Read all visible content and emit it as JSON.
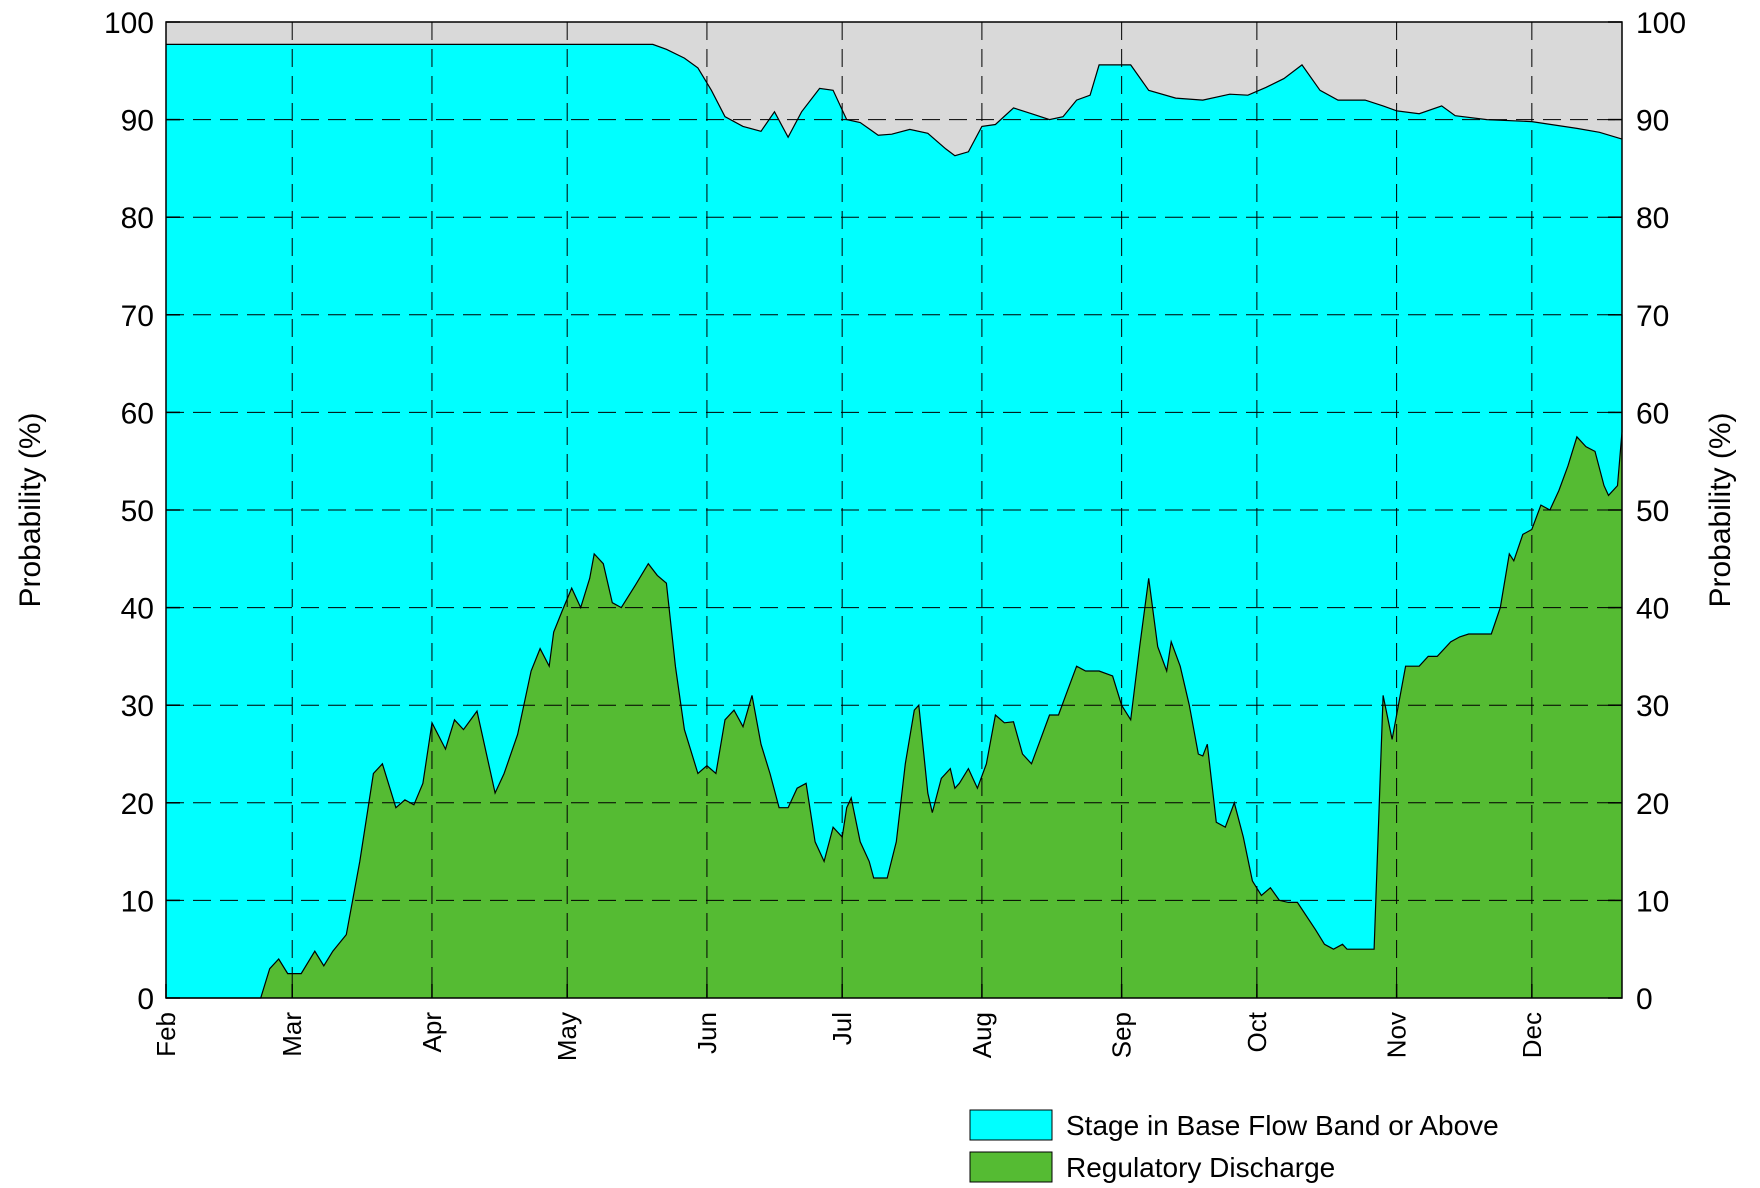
{
  "chart_data": {
    "type": "area",
    "ylabel_left": "Probability (%)",
    "ylabel_right": "Probability (%)",
    "ylim": [
      0,
      100
    ],
    "y_ticks": [
      0,
      10,
      20,
      30,
      40,
      50,
      60,
      70,
      80,
      90,
      100
    ],
    "x_unit": "day_of_year",
    "xlim": [
      32,
      355
    ],
    "x_ticks": [
      {
        "x": 32,
        "label": "Feb"
      },
      {
        "x": 60,
        "label": "Mar"
      },
      {
        "x": 91,
        "label": "Apr"
      },
      {
        "x": 121,
        "label": "May"
      },
      {
        "x": 152,
        "label": "Jun"
      },
      {
        "x": 182,
        "label": "Jul"
      },
      {
        "x": 213,
        "label": "Aug"
      },
      {
        "x": 244,
        "label": "Sep"
      },
      {
        "x": 274,
        "label": "Oct"
      },
      {
        "x": 305,
        "label": "Nov"
      },
      {
        "x": 335,
        "label": "Dec"
      }
    ],
    "grid": true,
    "legend_position": "bottom-right",
    "background_color": "#d9d9d9",
    "series": [
      {
        "name": "Stage in Base Flow Band or Above",
        "color": "#00ffff",
        "points": [
          [
            32,
            97.7
          ],
          [
            60,
            97.7
          ],
          [
            91,
            97.7
          ],
          [
            121,
            97.7
          ],
          [
            140,
            97.7
          ],
          [
            143,
            97.2
          ],
          [
            147,
            96.3
          ],
          [
            150,
            95.3
          ],
          [
            153,
            93.0
          ],
          [
            156,
            90.3
          ],
          [
            160,
            89.3
          ],
          [
            164,
            88.8
          ],
          [
            167,
            90.8
          ],
          [
            170,
            88.2
          ],
          [
            173,
            90.8
          ],
          [
            177,
            93.2
          ],
          [
            180,
            93.0
          ],
          [
            183,
            90.0
          ],
          [
            186,
            89.7
          ],
          [
            190,
            88.4
          ],
          [
            193,
            88.5
          ],
          [
            197,
            89.0
          ],
          [
            201,
            88.6
          ],
          [
            205,
            87.0
          ],
          [
            207,
            86.3
          ],
          [
            210,
            86.7
          ],
          [
            213,
            89.3
          ],
          [
            216,
            89.5
          ],
          [
            220,
            91.2
          ],
          [
            224,
            90.6
          ],
          [
            228,
            90.0
          ],
          [
            231,
            90.3
          ],
          [
            234,
            92.0
          ],
          [
            237,
            92.5
          ],
          [
            239,
            95.6
          ],
          [
            246,
            95.6
          ],
          [
            250,
            93.0
          ],
          [
            256,
            92.2
          ],
          [
            262,
            92.0
          ],
          [
            268,
            92.6
          ],
          [
            272,
            92.5
          ],
          [
            276,
            93.3
          ],
          [
            280,
            94.2
          ],
          [
            284,
            95.6
          ],
          [
            288,
            93.0
          ],
          [
            292,
            92.0
          ],
          [
            298,
            92.0
          ],
          [
            302,
            91.4
          ],
          [
            305,
            90.9
          ],
          [
            310,
            90.6
          ],
          [
            315,
            91.4
          ],
          [
            318,
            90.4
          ],
          [
            325,
            90.0
          ],
          [
            335,
            89.8
          ],
          [
            345,
            89.1
          ],
          [
            350,
            88.7
          ],
          [
            355,
            88.0
          ]
        ]
      },
      {
        "name": "Regulatory Discharge",
        "color": "#55bb33",
        "points": [
          [
            32,
            0
          ],
          [
            53,
            0
          ],
          [
            55,
            3.0
          ],
          [
            57,
            4.0
          ],
          [
            59,
            2.5
          ],
          [
            62,
            2.5
          ],
          [
            65,
            4.8
          ],
          [
            67,
            3.3
          ],
          [
            69,
            4.8
          ],
          [
            72,
            6.5
          ],
          [
            75,
            14.0
          ],
          [
            78,
            23.0
          ],
          [
            80,
            24.0
          ],
          [
            83,
            19.5
          ],
          [
            85,
            20.3
          ],
          [
            87,
            19.8
          ],
          [
            89,
            22.0
          ],
          [
            91,
            28.2
          ],
          [
            94,
            25.5
          ],
          [
            96,
            28.5
          ],
          [
            98,
            27.5
          ],
          [
            101,
            29.4
          ],
          [
            105,
            21.0
          ],
          [
            107,
            23.0
          ],
          [
            110,
            27.0
          ],
          [
            113,
            33.5
          ],
          [
            115,
            35.8
          ],
          [
            117,
            34.0
          ],
          [
            118,
            37.5
          ],
          [
            120,
            39.8
          ],
          [
            122,
            42.0
          ],
          [
            124,
            40.0
          ],
          [
            126,
            43.0
          ],
          [
            127,
            45.5
          ],
          [
            129,
            44.5
          ],
          [
            131,
            40.5
          ],
          [
            133,
            40.0
          ],
          [
            136,
            42.2
          ],
          [
            139,
            44.5
          ],
          [
            141,
            43.3
          ],
          [
            143,
            42.5
          ],
          [
            145,
            34.0
          ],
          [
            147,
            27.5
          ],
          [
            150,
            23.0
          ],
          [
            152,
            23.8
          ],
          [
            154,
            23.0
          ],
          [
            156,
            28.5
          ],
          [
            158,
            29.5
          ],
          [
            160,
            27.8
          ],
          [
            162,
            31.0
          ],
          [
            164,
            26.0
          ],
          [
            166,
            23.0
          ],
          [
            168,
            19.5
          ],
          [
            170,
            19.5
          ],
          [
            172,
            21.5
          ],
          [
            174,
            22.0
          ],
          [
            176,
            16.0
          ],
          [
            178,
            14.0
          ],
          [
            180,
            17.5
          ],
          [
            182,
            16.5
          ],
          [
            183,
            19.5
          ],
          [
            184,
            20.5
          ],
          [
            186,
            16.0
          ],
          [
            188,
            14.0
          ],
          [
            189,
            12.3
          ],
          [
            192,
            12.3
          ],
          [
            194,
            16.0
          ],
          [
            196,
            24.0
          ],
          [
            198,
            29.5
          ],
          [
            199,
            30.0
          ],
          [
            201,
            21.0
          ],
          [
            202,
            19.0
          ],
          [
            204,
            22.5
          ],
          [
            206,
            23.5
          ],
          [
            207,
            21.5
          ],
          [
            208,
            22.0
          ],
          [
            210,
            23.5
          ],
          [
            212,
            21.5
          ],
          [
            214,
            24.0
          ],
          [
            216,
            29.0
          ],
          [
            218,
            28.2
          ],
          [
            220,
            28.3
          ],
          [
            222,
            25.0
          ],
          [
            224,
            24.0
          ],
          [
            226,
            26.5
          ],
          [
            228,
            29.0
          ],
          [
            230,
            29.0
          ],
          [
            232,
            31.5
          ],
          [
            234,
            34.0
          ],
          [
            236,
            33.5
          ],
          [
            239,
            33.5
          ],
          [
            242,
            33.0
          ],
          [
            244,
            30.0
          ],
          [
            246,
            28.5
          ],
          [
            248,
            36.0
          ],
          [
            250,
            43.0
          ],
          [
            252,
            36.0
          ],
          [
            254,
            33.5
          ],
          [
            255,
            36.5
          ],
          [
            257,
            34.0
          ],
          [
            259,
            30.0
          ],
          [
            261,
            25.0
          ],
          [
            262,
            24.8
          ],
          [
            263,
            26.0
          ],
          [
            265,
            18.0
          ],
          [
            267,
            17.5
          ],
          [
            269,
            20.0
          ],
          [
            271,
            16.5
          ],
          [
            273,
            12.0
          ],
          [
            275,
            10.5
          ],
          [
            277,
            11.3
          ],
          [
            279,
            10.0
          ],
          [
            281,
            9.8
          ],
          [
            283,
            9.8
          ],
          [
            287,
            7.0
          ],
          [
            289,
            5.5
          ],
          [
            291,
            5.0
          ],
          [
            293,
            5.5
          ],
          [
            294,
            5.0
          ],
          [
            296,
            5.0
          ],
          [
            300,
            5.0
          ],
          [
            302,
            31.0
          ],
          [
            304,
            26.5
          ],
          [
            307,
            34.0
          ],
          [
            310,
            34.0
          ],
          [
            312,
            35.0
          ],
          [
            314,
            35.0
          ],
          [
            317,
            36.5
          ],
          [
            319,
            37.0
          ],
          [
            321,
            37.3
          ],
          [
            326,
            37.3
          ],
          [
            328,
            40.0
          ],
          [
            330,
            45.5
          ],
          [
            331,
            44.8
          ],
          [
            333,
            47.5
          ],
          [
            335,
            48.0
          ],
          [
            337,
            50.5
          ],
          [
            339,
            50.0
          ],
          [
            341,
            52.0
          ],
          [
            343,
            54.5
          ],
          [
            345,
            57.5
          ],
          [
            347,
            56.5
          ],
          [
            349,
            56.0
          ],
          [
            351,
            52.5
          ],
          [
            352,
            51.5
          ],
          [
            354,
            52.5
          ],
          [
            356,
            58.0
          ],
          [
            358,
            68.0
          ],
          [
            359,
            70.0
          ]
        ]
      }
    ]
  }
}
